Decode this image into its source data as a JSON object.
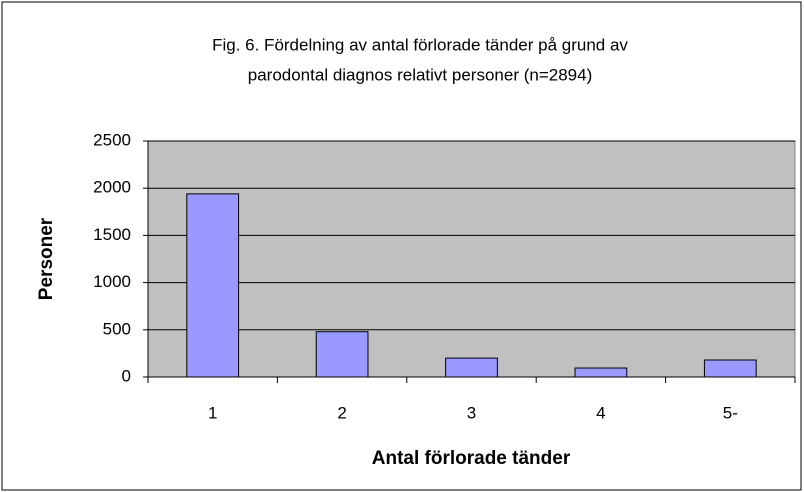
{
  "chart_data": {
    "type": "bar",
    "title": [
      "Fig. 6. Fördelning av antal förlorade tänder på grund av",
      "parodontal diagnos relativt personer (n=2894)"
    ],
    "x_label": "Antal förlorade tänder",
    "y_label": "Personer",
    "categories": [
      "1",
      "2",
      "3",
      "4",
      "5-"
    ],
    "values": [
      1940,
      480,
      200,
      95,
      180
    ],
    "color": "#9999ff",
    "ylim": [
      0,
      2500
    ],
    "yticks": [
      0,
      500,
      1000,
      1500,
      2000,
      2500
    ],
    "grid": true
  }
}
